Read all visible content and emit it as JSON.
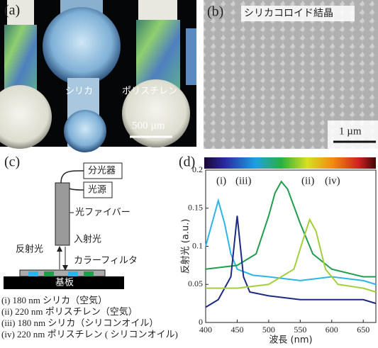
{
  "panel_a": {
    "label": "(a)",
    "silica": "シリカ",
    "polystyrene": "ポリスチレン",
    "scale_bar": "500 µm"
  },
  "panel_b": {
    "label": "(b)",
    "title": "シリカコロイド結晶",
    "scale_bar": "1 µm"
  },
  "panel_c": {
    "label": "(c)",
    "spectrometer": "分光器",
    "light_source": "光源",
    "fiber": "光ファイバー",
    "incident": "入射光",
    "reflected": "反射光",
    "filter": "カラーフィルタ",
    "substrate": "基板",
    "legend": [
      "(i) 180 nm シリカ（空気）",
      "(ii) 220 nm ポリスチレン（空気）",
      "(iii) 180 nm シリカ（シリコンオイル）",
      "(iv) 220 nm ポリスチレン ( シリコンオイル)"
    ]
  },
  "chart_data": {
    "type": "line",
    "label": "(d)",
    "xlabel": "波長 (nm)",
    "ylabel": "反射光 (a.u.)",
    "xlim": [
      400,
      670
    ],
    "ylim": [
      0,
      0.2
    ],
    "xticks": [
      400,
      450,
      500,
      550,
      600,
      650
    ],
    "yticks": [
      0,
      0.05,
      0.1,
      0.15,
      0.2
    ],
    "series": [
      {
        "name": "(i)",
        "color": "#2cb5e8",
        "x": [
          400,
          410,
          420,
          430,
          440,
          450,
          475,
          500,
          550,
          600,
          650,
          670
        ],
        "values": [
          0.1,
          0.13,
          0.16,
          0.13,
          0.09,
          0.07,
          0.062,
          0.06,
          0.055,
          0.06,
          0.055,
          0.05
        ]
      },
      {
        "name": "(ii)",
        "color": "#1f9e4c",
        "x": [
          400,
          450,
          480,
          500,
          510,
          520,
          530,
          550,
          570,
          600,
          650,
          670
        ],
        "values": [
          0.07,
          0.075,
          0.09,
          0.14,
          0.17,
          0.185,
          0.175,
          0.13,
          0.09,
          0.07,
          0.06,
          0.06
        ]
      },
      {
        "name": "(iii)",
        "color": "#1c2a85",
        "x": [
          400,
          420,
          440,
          445,
          450,
          455,
          460,
          470,
          500,
          550,
          600,
          650,
          670
        ],
        "values": [
          0.02,
          0.03,
          0.06,
          0.1,
          0.14,
          0.1,
          0.06,
          0.04,
          0.035,
          0.03,
          0.03,
          0.03,
          0.025
        ]
      },
      {
        "name": "(iv)",
        "color": "#a3cf3a",
        "x": [
          400,
          450,
          500,
          540,
          555,
          565,
          575,
          590,
          610,
          650,
          670
        ],
        "values": [
          0.045,
          0.045,
          0.05,
          0.07,
          0.11,
          0.135,
          0.12,
          0.07,
          0.05,
          0.045,
          0.04
        ]
      }
    ]
  }
}
